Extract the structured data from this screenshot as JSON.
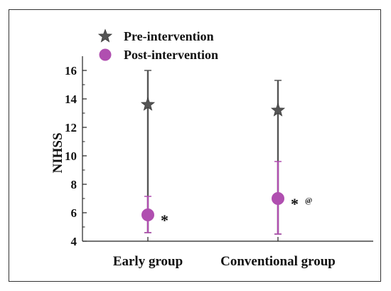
{
  "chart_data": {
    "type": "scatter",
    "title": "",
    "xlabel": "",
    "ylabel": "NIHSS",
    "ylim": [
      4,
      17
    ],
    "yticks": [
      4,
      6,
      8,
      10,
      12,
      14,
      16
    ],
    "grid": false,
    "legend_position": "top-left",
    "categories": [
      "Early group",
      "Conventional group"
    ],
    "series": [
      {
        "name": "Pre-intervention",
        "marker": "star",
        "color": "#555555",
        "values": [
          13.6,
          13.2
        ],
        "error_low": [
          4.6,
          4.5
        ],
        "error_high": [
          16.0,
          15.3
        ]
      },
      {
        "name": "Post-intervention",
        "marker": "circle",
        "color": "#b04fb0",
        "values": [
          5.85,
          7.0
        ],
        "error_low": [
          4.6,
          4.5
        ],
        "error_high": [
          7.15,
          9.6
        ]
      }
    ],
    "annotations": [
      {
        "category": "Early group",
        "text": "*"
      },
      {
        "category": "Conventional group",
        "text": "* @"
      }
    ]
  }
}
